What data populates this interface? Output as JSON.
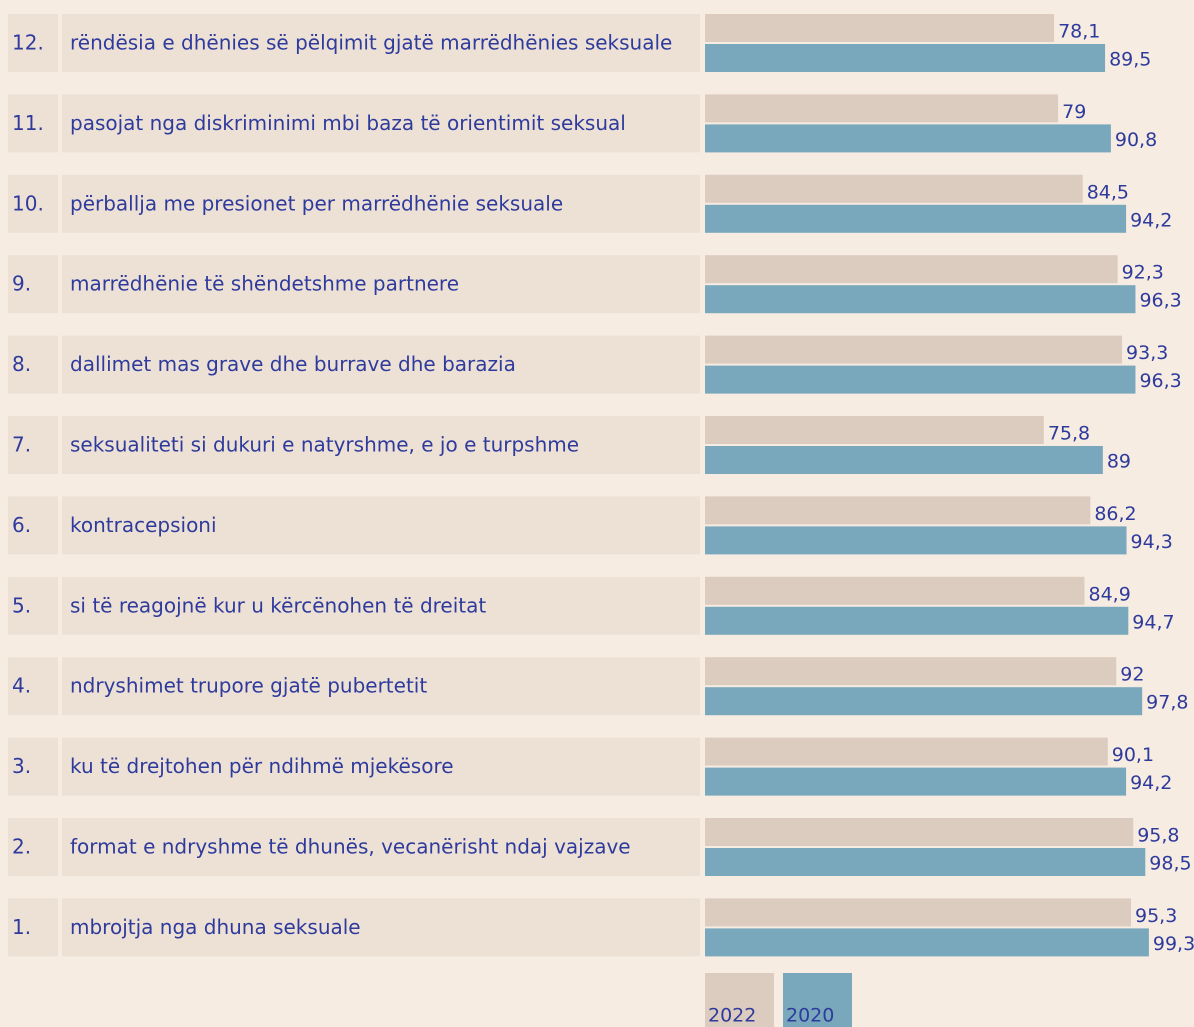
{
  "chart_data": {
    "type": "bar",
    "orientation": "horizontal",
    "category_numbers": [
      "12.",
      "11.",
      "10.",
      "9.",
      "8.",
      "7.",
      "6.",
      "5.",
      "4.",
      "3.",
      "2.",
      "1."
    ],
    "categories": [
      "rëndësia e dhënies së pëlqimit gjatë marrëdhënies seksuale",
      "pasojat nga diskriminimi mbi baza të orientimit seksual",
      "përballja me presionet per marrëdhënie seksuale",
      "marrëdhënie të shëndetshme partnere",
      "dallimet mas grave dhe burrave dhe barazia",
      "seksualiteti si dukuri e natyrshme, e jo e turpshme",
      "kontracepsioni",
      "si të reagojnë kur u kërcënohen të dreitat",
      "ndryshimet trupore gjatë pubertetit",
      "ku të drejtohen për ndihmë mjekësore",
      "format e ndryshme të dhunës, vecanërisht ndaj vajzave",
      "mbrojtja nga dhuna seksuale"
    ],
    "series": [
      {
        "name": "2022",
        "color": "#dccbbf",
        "values": [
          78.1,
          79,
          84.5,
          92.3,
          93.3,
          75.8,
          86.2,
          84.9,
          92,
          90.1,
          95.8,
          95.3
        ],
        "value_labels": [
          "78,1",
          "79",
          "84,5",
          "92,3",
          "93,3",
          "75,8",
          "86,2",
          "84,9",
          "92",
          "90,1",
          "95,8",
          "95,3"
        ]
      },
      {
        "name": "2020",
        "color": "#79a7bc",
        "values": [
          89.5,
          90.8,
          94.2,
          96.3,
          96.3,
          89,
          94.3,
          94.7,
          97.8,
          94.2,
          98.5,
          99.3
        ],
        "value_labels": [
          "89,5",
          "90,8",
          "94,2",
          "96,3",
          "96,3",
          "89",
          "94,3",
          "94,7",
          "97,8",
          "94,2",
          "98,5",
          "99,3"
        ]
      }
    ],
    "xlim": [
      0,
      100
    ]
  }
}
